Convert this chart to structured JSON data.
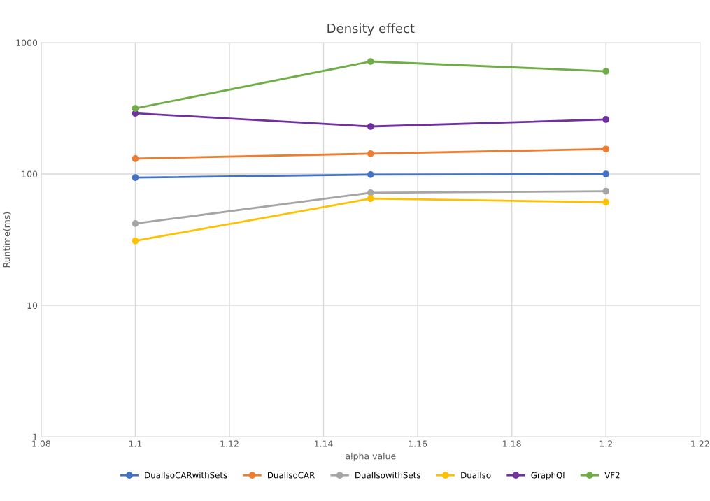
{
  "chart_data": {
    "type": "line",
    "title": "Density effect",
    "xlabel": "alpha value",
    "ylabel": "Runtime(ms)",
    "x": [
      1.1,
      1.15,
      1.2
    ],
    "series": [
      {
        "name": "DualIsoCARwithSets",
        "color": "#4472c4",
        "values": [
          94,
          99,
          100
        ]
      },
      {
        "name": "DualIsoCAR",
        "color": "#ed7d31",
        "values": [
          131,
          143,
          155
        ]
      },
      {
        "name": "DualIsowithSets",
        "color": "#a5a5a5",
        "values": [
          42,
          72,
          74
        ]
      },
      {
        "name": "DualIso",
        "color": "#ffc000",
        "values": [
          31,
          65,
          61
        ]
      },
      {
        "name": "GraphQl",
        "color": "#7030a0",
        "values": [
          290,
          230,
          260
        ]
      },
      {
        "name": "VF2",
        "color": "#70ad47",
        "values": [
          316,
          718,
          605
        ]
      }
    ],
    "xlim": [
      1.08,
      1.22
    ],
    "xticks": [
      1.08,
      1.1,
      1.12,
      1.14,
      1.16,
      1.18,
      1.2,
      1.22
    ],
    "ylim": [
      1,
      1000
    ],
    "yticks": [
      1,
      10,
      100,
      1000
    ],
    "log": "y",
    "grid": true,
    "legend": "bottom",
    "marker": "circle",
    "line_style": "solid"
  }
}
